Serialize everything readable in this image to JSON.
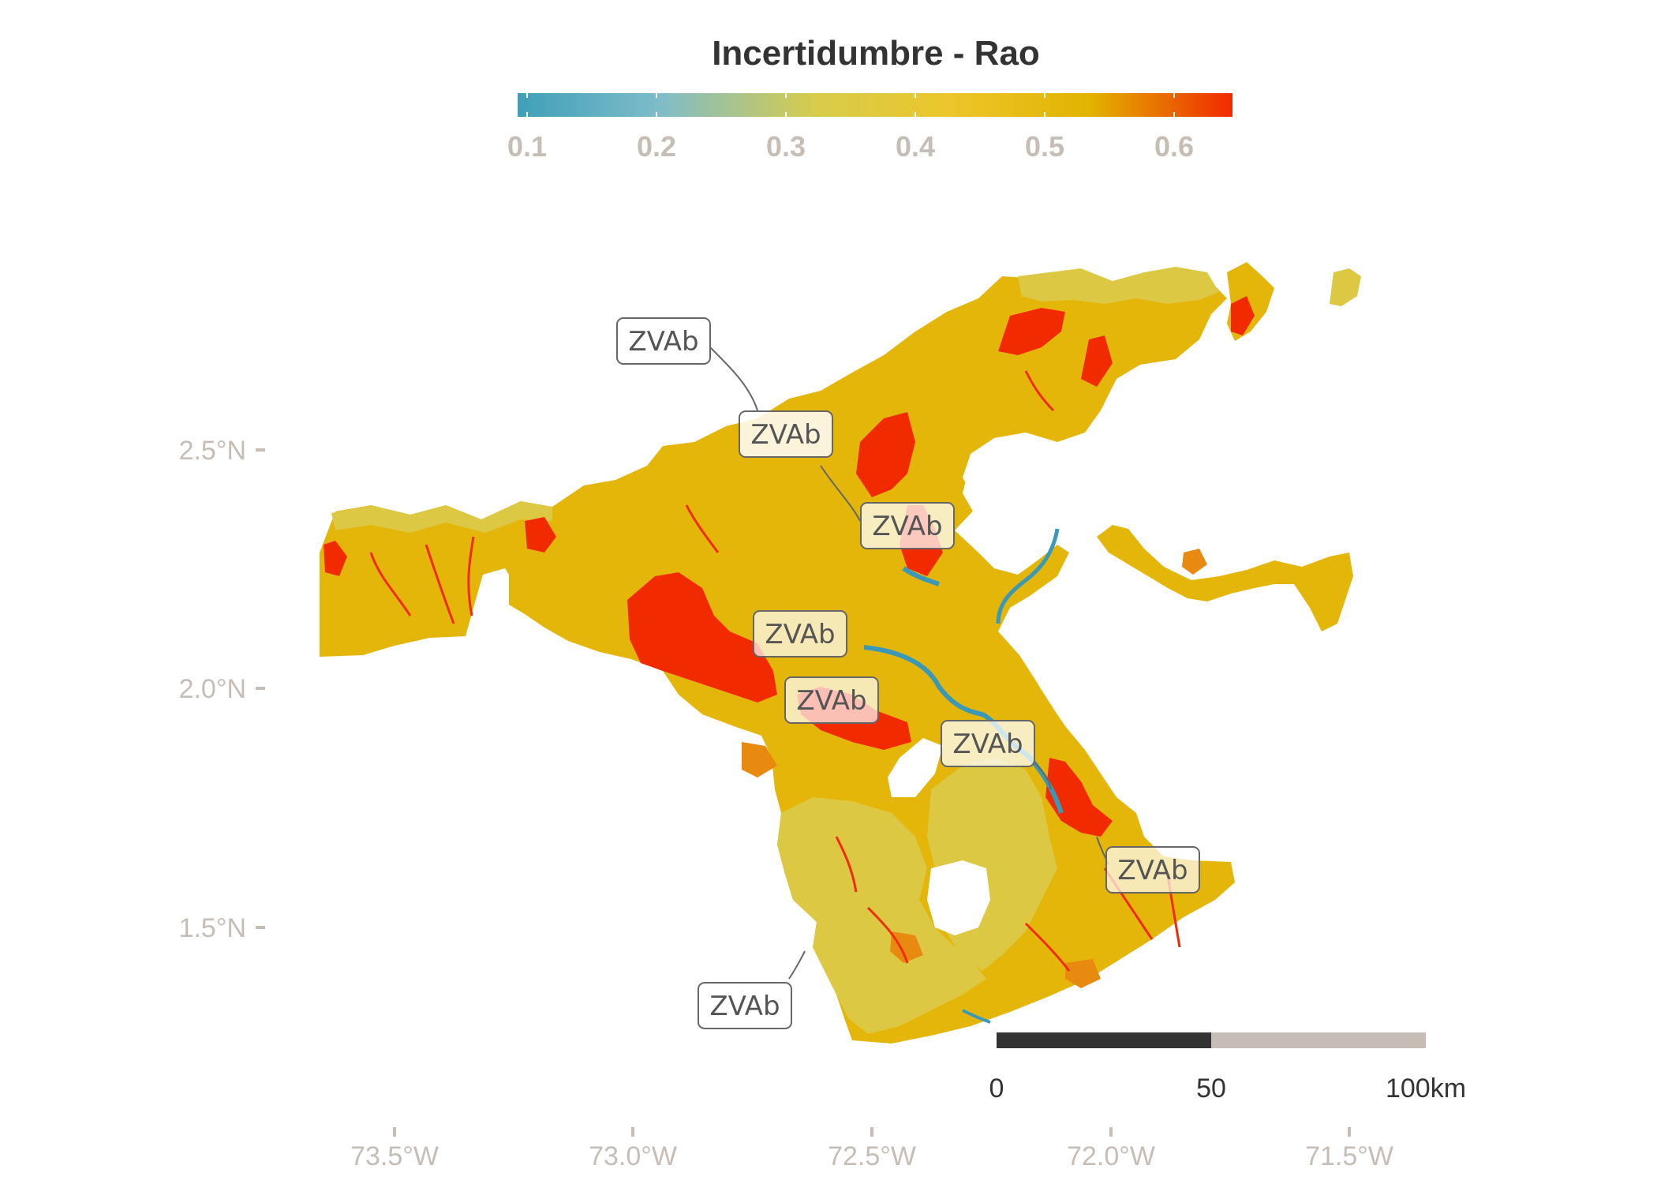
{
  "legend": {
    "title": "Incertidumbre - Rao",
    "ticks": [
      "0.1",
      "0.2",
      "0.3",
      "0.4",
      "0.5",
      "0.6"
    ],
    "colors": [
      "#3fa0b8",
      "#7fbcc9",
      "#d8cc4a",
      "#ecc62c",
      "#e2b300",
      "#f02a00"
    ]
  },
  "axes": {
    "latitude_labels": [
      "2.5°N",
      "2.0°N",
      "1.5°N"
    ],
    "longitude_labels": [
      "73.5°W",
      "73.0°W",
      "72.5°W",
      "72.0°W",
      "71.5°W"
    ]
  },
  "scale_bar": {
    "labels": [
      "0",
      "50",
      "100km"
    ]
  },
  "zone_labels": [
    "ZVAb",
    "ZVAb",
    "ZVAb",
    "ZVAb",
    "ZVAb",
    "ZVAb",
    "ZVAb",
    "ZVAb"
  ],
  "map_colors": {
    "low": "#3a98b8",
    "mid_low": "#dcc842",
    "mid": "#e4b60a",
    "mid_high": "#e88a10",
    "high": "#f22a00"
  }
}
